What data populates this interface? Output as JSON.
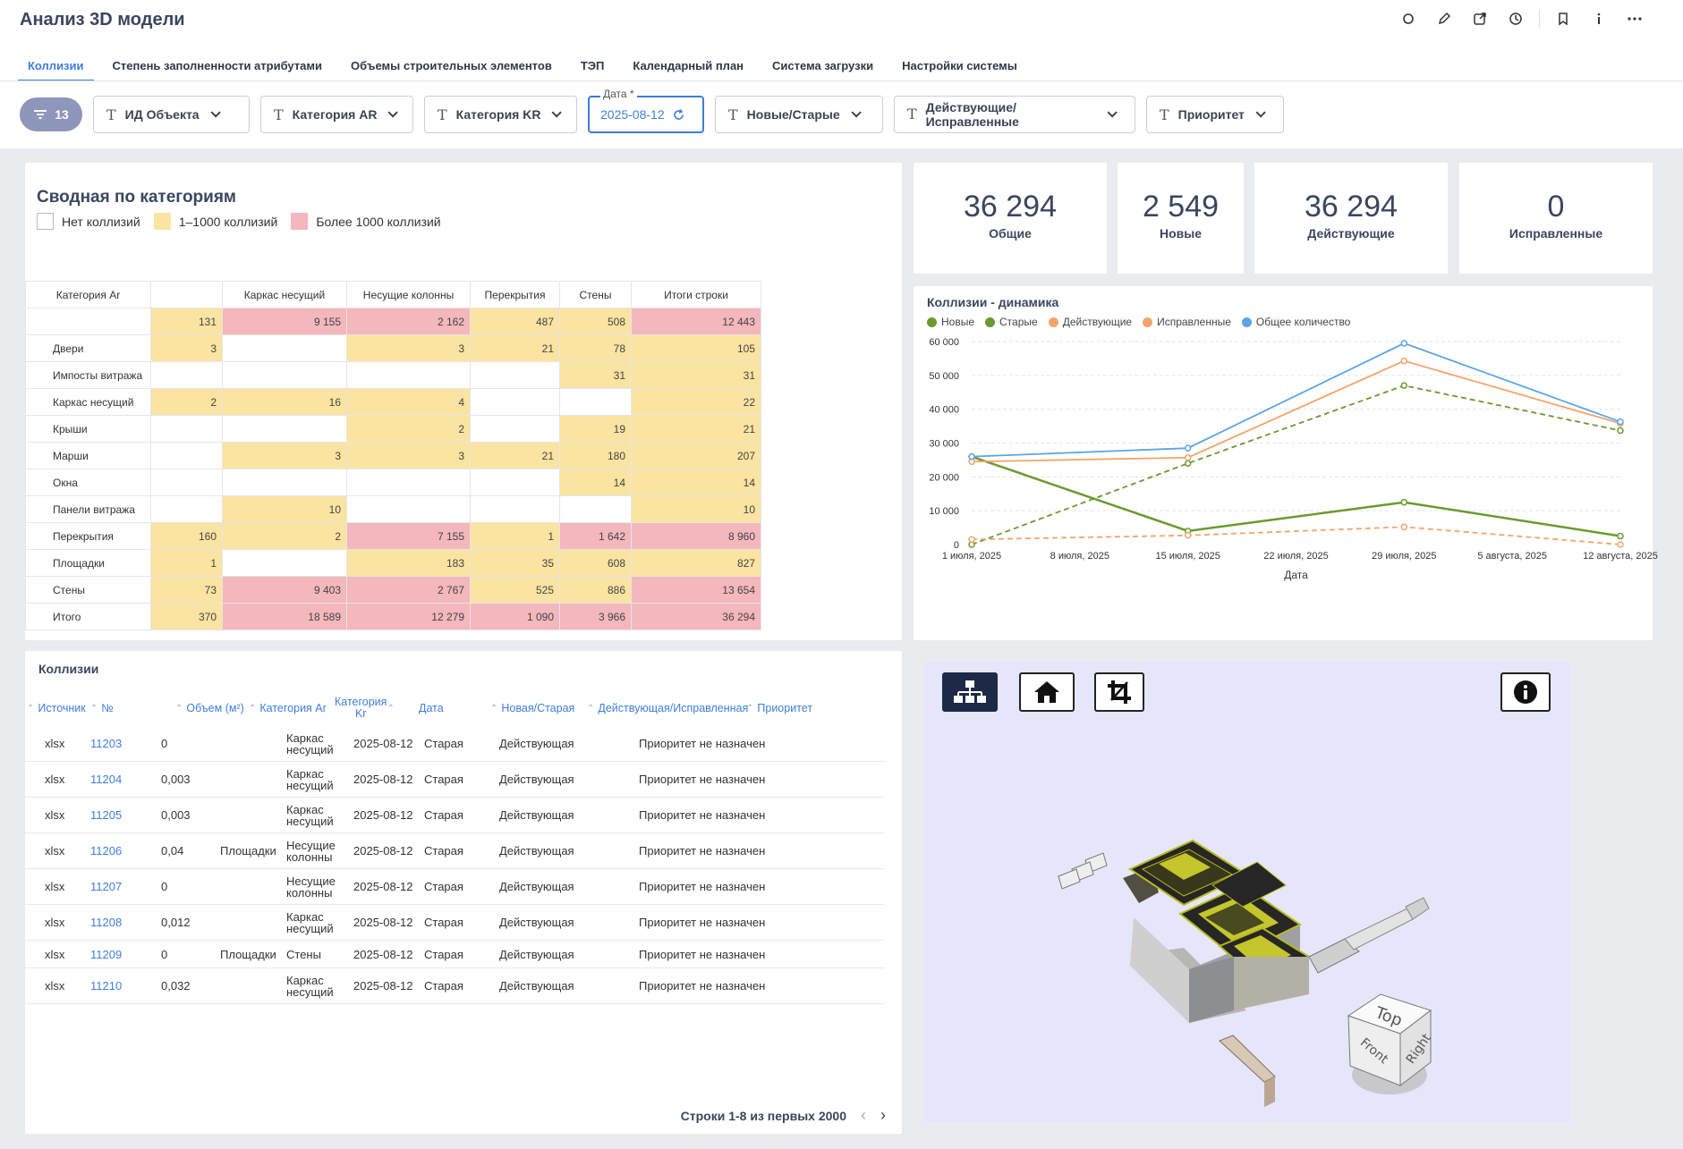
{
  "app": {
    "title": "Анализ 3D модели"
  },
  "tabs": [
    {
      "label": "Коллизии"
    },
    {
      "label": "Степень заполненности атрибутами"
    },
    {
      "label": "Объемы строительных элементов"
    },
    {
      "label": "ТЭП"
    },
    {
      "label": "Календарный план"
    },
    {
      "label": "Система загрузки"
    },
    {
      "label": "Настройки системы"
    }
  ],
  "filters": {
    "count": "13",
    "items": [
      {
        "label": "ИД Объекта"
      },
      {
        "label": "Категория AR"
      },
      {
        "label": "Категория KR"
      }
    ],
    "date": {
      "label": "Дата *",
      "value": "2025-08-12"
    },
    "items2": [
      {
        "label": "Новые/Старые"
      },
      {
        "label": "Действующие/ Исправленные"
      },
      {
        "label": "Приоритет"
      }
    ]
  },
  "summary": {
    "title": "Сводная по категориям",
    "legend": [
      {
        "label": "Нет коллизий",
        "color": "#ffffff"
      },
      {
        "label": "1–1000 коллизий",
        "color": "#fbe3a1"
      },
      {
        "label": "Более 1000 коллизий",
        "color": "#f3b7bc"
      }
    ],
    "header": [
      "Категория Ar",
      "",
      "Каркас несущий",
      "Несущие колонны",
      "Перекрытия",
      "Стены",
      "Итоги строки"
    ],
    "rows": [
      {
        "label": "",
        "cells": [
          "131",
          "9 155",
          "2 162",
          "487",
          "508",
          "12 443"
        ]
      },
      {
        "label": "Двери",
        "cells": [
          "3",
          "",
          "3",
          "21",
          "78",
          "105"
        ]
      },
      {
        "label": "Импосты витража",
        "cells": [
          "",
          "",
          "",
          "",
          "31",
          "31"
        ]
      },
      {
        "label": "Каркас несущий",
        "cells": [
          "2",
          "16",
          "4",
          "",
          "",
          "22"
        ]
      },
      {
        "label": "Крыши",
        "cells": [
          "",
          "",
          "2",
          "",
          "19",
          "21"
        ]
      },
      {
        "label": "Марши",
        "cells": [
          "",
          "3",
          "3",
          "21",
          "180",
          "207"
        ]
      },
      {
        "label": "Окна",
        "cells": [
          "",
          "",
          "",
          "",
          "14",
          "14"
        ]
      },
      {
        "label": "Панели витража",
        "cells": [
          "",
          "10",
          "",
          "",
          "",
          "10"
        ]
      },
      {
        "label": "Перекрытия",
        "cells": [
          "160",
          "2",
          "7 155",
          "1",
          "1 642",
          "8 960"
        ]
      },
      {
        "label": "Площадки",
        "cells": [
          "1",
          "",
          "183",
          "35",
          "608",
          "827"
        ]
      },
      {
        "label": "Стены",
        "cells": [
          "73",
          "9 403",
          "2 767",
          "525",
          "886",
          "13 654"
        ]
      },
      {
        "label": "Итого",
        "cells": [
          "370",
          "18 589",
          "12 279",
          "1 090",
          "3 966",
          "36 294"
        ]
      }
    ]
  },
  "kpis": [
    {
      "value": "36 294",
      "label": "Общие"
    },
    {
      "value": "2 549",
      "label": "Новые"
    },
    {
      "value": "36 294",
      "label": "Действующие"
    },
    {
      "value": "0",
      "label": "Исправленные"
    }
  ],
  "chart_data": {
    "type": "line",
    "title": "Коллизии - динамика",
    "xlabel": "Дата",
    "ylabel": "",
    "x": [
      "1 июля, 2025",
      "15 июля, 2025",
      "29 июля, 2025",
      "12 августа, 2025"
    ],
    "xticks": [
      "1 июля, 2025",
      "8 июля, 2025",
      "15 июля, 2025",
      "22 июля, 2025",
      "29 июля, 2025",
      "5 августа, 2025",
      "12 августа, 2025"
    ],
    "yticks": [
      "0",
      "10 000",
      "20 000",
      "30 000",
      "40 000",
      "50 000",
      "60 000"
    ],
    "ylim": [
      0,
      60000
    ],
    "legend": "top-left",
    "grid": true,
    "series": [
      {
        "name": "Новые",
        "color": "#6a9a2e",
        "dashed": false,
        "values": [
          26000,
          4000,
          12500,
          2500
        ]
      },
      {
        "name": "Старые",
        "color": "#6a9a2e",
        "dashed": true,
        "values": [
          0,
          24000,
          47000,
          33700
        ]
      },
      {
        "name": "Действующие",
        "color": "#f4a46a",
        "dashed": false,
        "values": [
          24500,
          25700,
          54300,
          35800
        ]
      },
      {
        "name": "Исправленные",
        "color": "#f4a46a",
        "dashed": true,
        "values": [
          1500,
          2700,
          5200,
          0
        ]
      },
      {
        "name": "Общее количество",
        "color": "#5da4e4",
        "dashed": false,
        "values": [
          26000,
          28500,
          59500,
          36300
        ]
      }
    ]
  },
  "collisions": {
    "title": "Коллизии",
    "columns": [
      "Источник",
      "№",
      "Объем (м²)",
      "Категория Ar",
      "Категория Kr",
      "Дата",
      "Новая/Старая",
      "Действующая/Исправленная",
      "Приоритет"
    ],
    "rows": [
      {
        "src": "xlsx",
        "num": "11203",
        "vol": "0",
        "ar": "",
        "kr": "Каркас несущий",
        "date": "2025-08-12",
        "ns": "Старая",
        "di": "Действующая",
        "prio": "Приоритет не назначен"
      },
      {
        "src": "xlsx",
        "num": "11204",
        "vol": "0,003",
        "ar": "",
        "kr": "Каркас несущий",
        "date": "2025-08-12",
        "ns": "Старая",
        "di": "Действующая",
        "prio": "Приоритет не назначен"
      },
      {
        "src": "xlsx",
        "num": "11205",
        "vol": "0,003",
        "ar": "",
        "kr": "Каркас несущий",
        "date": "2025-08-12",
        "ns": "Старая",
        "di": "Действующая",
        "prio": "Приоритет не назначен"
      },
      {
        "src": "xlsx",
        "num": "11206",
        "vol": "0,04",
        "ar": "Площадки",
        "kr": "Несущие колонны",
        "date": "2025-08-12",
        "ns": "Старая",
        "di": "Действующая",
        "prio": "Приоритет не назначен"
      },
      {
        "src": "xlsx",
        "num": "11207",
        "vol": "0",
        "ar": "",
        "kr": "Несущие колонны",
        "date": "2025-08-12",
        "ns": "Старая",
        "di": "Действующая",
        "prio": "Приоритет не назначен"
      },
      {
        "src": "xlsx",
        "num": "11208",
        "vol": "0,012",
        "ar": "",
        "kr": "Каркас несущий",
        "date": "2025-08-12",
        "ns": "Старая",
        "di": "Действующая",
        "prio": "Приоритет не назначен"
      },
      {
        "src": "xlsx",
        "num": "11209",
        "vol": "0",
        "ar": "Площадки",
        "kr": "Стены",
        "date": "2025-08-12",
        "ns": "Старая",
        "di": "Действующая",
        "prio": "Приоритет не назначен"
      },
      {
        "src": "xlsx",
        "num": "11210",
        "vol": "0,032",
        "ar": "",
        "kr": "Каркас несущий",
        "date": "2025-08-12",
        "ns": "Старая",
        "di": "Действующая",
        "prio": "Приоритет не назначен"
      }
    ],
    "pager": "Строки 1-8 из первых 2000"
  },
  "viewer": {
    "cube": {
      "top": "Top",
      "front": "Front",
      "right": "Right"
    }
  }
}
